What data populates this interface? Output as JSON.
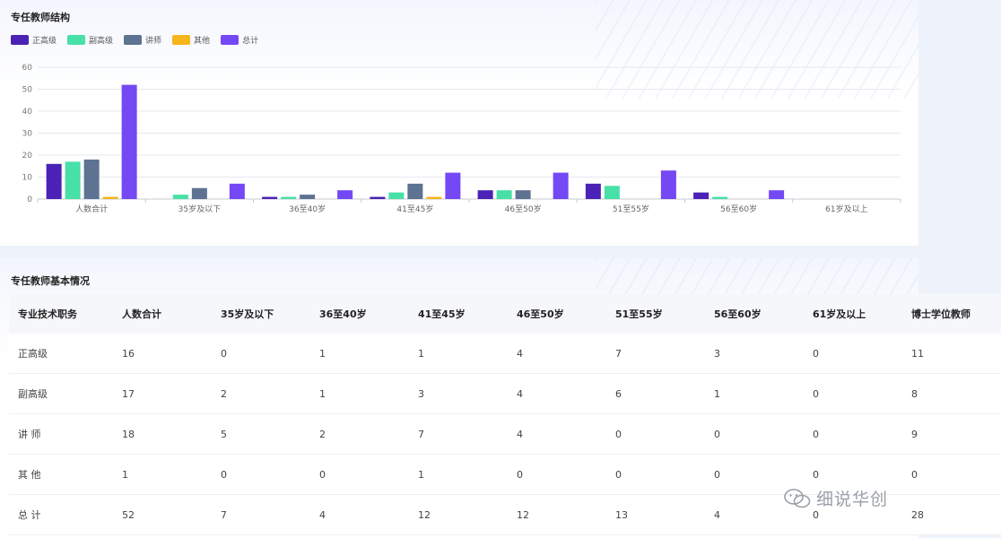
{
  "chart_section": {
    "title": "专任教师结构"
  },
  "table_section": {
    "title": "专任教师基本情况",
    "headers": [
      "专业技术职务",
      "人数合计",
      "35岁及以下",
      "36至40岁",
      "41至45岁",
      "46至50岁",
      "51至55岁",
      "56至60岁",
      "61岁及以上",
      "博士学位教师"
    ],
    "rows": [
      [
        "正高级",
        "16",
        "0",
        "1",
        "1",
        "4",
        "7",
        "3",
        "0",
        "11"
      ],
      [
        "副高级",
        "17",
        "2",
        "1",
        "3",
        "4",
        "6",
        "1",
        "0",
        "8"
      ],
      [
        "讲 师",
        "18",
        "5",
        "2",
        "7",
        "4",
        "0",
        "0",
        "0",
        "9"
      ],
      [
        "其 他",
        "1",
        "0",
        "0",
        "1",
        "0",
        "0",
        "0",
        "0",
        "0"
      ],
      [
        "总 计",
        "52",
        "7",
        "4",
        "12",
        "12",
        "13",
        "4",
        "0",
        "28"
      ]
    ]
  },
  "watermark": {
    "text": "细说华创",
    "icon": "wechat-icon"
  },
  "colors": {
    "正高级": "#4b22b6",
    "副高级": "#47e0a6",
    "讲师": "#5e7291",
    "其他": "#f5b51b",
    "总计": "#7548f5"
  },
  "chart_data": {
    "type": "bar",
    "title": "专任教师结构",
    "categories": [
      "人数合计",
      "35岁及以下",
      "36至40岁",
      "41至45岁",
      "46至50岁",
      "51至55岁",
      "56至60岁",
      "61岁及以上"
    ],
    "series": [
      {
        "name": "正高级",
        "values": [
          16,
          0,
          1,
          1,
          4,
          7,
          3,
          0
        ]
      },
      {
        "name": "副高级",
        "values": [
          17,
          2,
          1,
          3,
          4,
          6,
          1,
          0
        ]
      },
      {
        "name": "讲师",
        "values": [
          18,
          5,
          2,
          7,
          4,
          0,
          0,
          0
        ]
      },
      {
        "name": "其他",
        "values": [
          1,
          0,
          0,
          1,
          0,
          0,
          0,
          0
        ]
      },
      {
        "name": "总计",
        "values": [
          52,
          7,
          4,
          12,
          12,
          13,
          4,
          0
        ]
      }
    ],
    "yticks": [
      0,
      10,
      20,
      30,
      40,
      50,
      60
    ],
    "ylim": [
      0,
      60
    ],
    "xlabel": "",
    "ylabel": "",
    "grid": true,
    "legend_position": "top-left"
  }
}
